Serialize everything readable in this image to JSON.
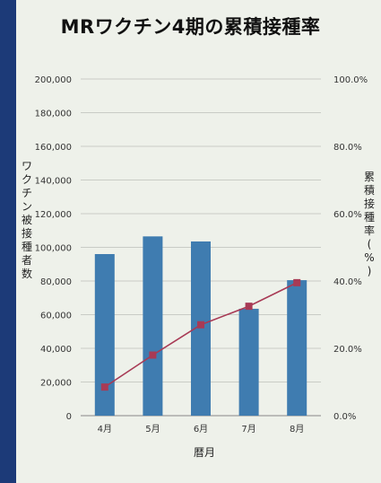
{
  "colors": {
    "bar": "#3f7cb0",
    "line": "#a83a55",
    "background": "#1c3a78",
    "panel": "#eef1ea"
  },
  "chart_data": {
    "type": "bar",
    "title": "MRワクチン4期の累積接種率",
    "categories": [
      "4月",
      "5月",
      "6月",
      "7月",
      "8月"
    ],
    "series": [
      {
        "name": "ワクチン被接種者数",
        "type": "bar",
        "axis": "left",
        "values": [
          96000,
          106500,
          103500,
          63500,
          80500
        ]
      },
      {
        "name": "累積接種率(%)",
        "type": "line",
        "axis": "right",
        "values": [
          8.5,
          18.0,
          27.0,
          32.5,
          39.5
        ]
      }
    ],
    "xlabel": "暦月",
    "ylabel": "ワクチン被接種者数",
    "y2label": "累積接種率(%)",
    "ylim": [
      0,
      200000
    ],
    "y2lim": [
      0,
      100
    ],
    "yticks": [
      "0",
      "20,000",
      "40,000",
      "60,000",
      "80,000",
      "100,000",
      "120,000",
      "140,000",
      "160,000",
      "180,000",
      "200,000"
    ],
    "y2ticks": [
      "0.0%",
      "20.0%",
      "40.0%",
      "60.0%",
      "80.0%",
      "100.0%"
    ],
    "grid": true
  }
}
